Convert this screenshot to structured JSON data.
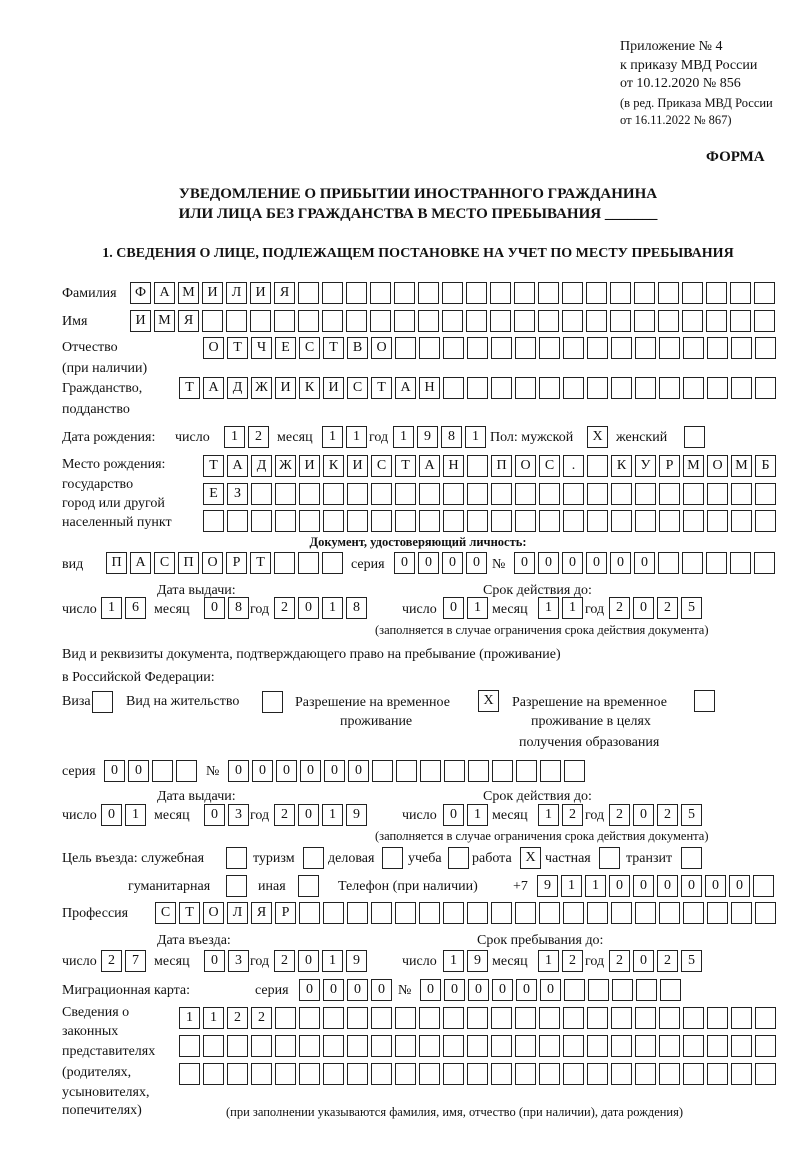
{
  "header": {
    "appendix": "Приложение № 4",
    "order": "к приказу МВД России",
    "order_date": "от 10.12.2020 № 856",
    "edit": "(в ред. Приказа МВД России",
    "edit_date": "от 16.11.2022 № 867)",
    "form": "ФОРМА",
    "title1": "УВЕДОМЛЕНИЕ О ПРИБЫТИИ ИНОСТРАННОГО ГРАЖДАНИНА",
    "title2": "ИЛИ ЛИЦА БЕЗ ГРАЖДАНСТВА В МЕСТО ПРЕБЫВАНИЯ _______",
    "section1": "1. СВЕДЕНИЯ О ЛИЦЕ, ПОДЛЕЖАЩЕМ ПОСТАНОВКЕ НА УЧЕТ ПО МЕСТУ ПРЕБЫВАНИЯ"
  },
  "labels": {
    "surname": "Фамилия",
    "name": "Имя",
    "patronymic": "Отчество",
    "patronymic2": "(при наличии)",
    "citizenship": "Гражданство,",
    "citizenship2": "подданство",
    "birth_date": "Дата рождения:",
    "day": "число",
    "month": "месяц",
    "year": "год",
    "sex": "Пол: мужской",
    "female": "женский",
    "birthplace1": "Место рождения:",
    "birthplace2": "государство",
    "birthplace3": "город или другой",
    "birthplace4": "населенный пункт",
    "id_doc": "Документ, удостоверяющий личность:",
    "kind": "вид",
    "series": "серия",
    "number": "№",
    "issue_date": "Дата выдачи:",
    "valid_until": "Срок действия до:",
    "validity_note": "(заполняется в случае ограничения срока действия документа)",
    "right_doc1": "Вид и реквизиты документа, подтверждающего право на пребывание (проживание)",
    "right_doc2": "в Российской Федерации:",
    "visa": "Виза",
    "residence": "Вид на жительство",
    "trp1": "Разрешение на временное",
    "trp2": "проживание",
    "trp_edu1": "Разрешение на временное",
    "trp_edu2": "проживание в целях",
    "trp_edu3": "получения образования",
    "purpose": "Цель въезда: служебная",
    "tourism": "туризм",
    "business": "деловая",
    "study": "учеба",
    "work": "работа",
    "private": "частная",
    "transit": "транзит",
    "humanitarian": "гуманитарная",
    "other": "иная",
    "phone": "Телефон (при наличии)",
    "phone_prefix": "+7",
    "profession": "Профессия",
    "entry_date": "Дата въезда:",
    "stay_until": "Срок пребывания до:",
    "migration_card": "Миграционная карта:",
    "reps1": "Сведения о",
    "reps2": "законных",
    "reps3": "представителях",
    "reps4": "(родителях,",
    "reps5": "усыновителях,",
    "reps6": "попечителях)",
    "reps_note": "(при заполнении указываются фамилия, имя, отчество (при наличии), дата рождения)"
  },
  "values": {
    "surname": "ФАМИЛИЯ",
    "name": "ИМЯ",
    "patronymic": "ОТЧЕСТВО",
    "citizenship": "ТАДЖИКИСТАН",
    "birth": {
      "day": "12",
      "month": "11",
      "year": "1981"
    },
    "sex_male": "X",
    "sex_female": "",
    "birthplace": [
      "ТАДЖИКИСТАН ПОС. КУРМОМБ",
      "ЕЗ",
      ""
    ],
    "id_doc": {
      "kind": "ПАСПОРТ",
      "series": "0000",
      "number": "000000",
      "issue": {
        "day": "16",
        "month": "08",
        "year": "2018"
      },
      "valid": {
        "day": "01",
        "month": "11",
        "year": "2025"
      }
    },
    "right_doc": {
      "visa": "",
      "residence": "",
      "trp": "X",
      "trp_edu": "",
      "series": "00",
      "number": "000000",
      "issue": {
        "day": "01",
        "month": "03",
        "year": "2019"
      },
      "valid": {
        "day": "01",
        "month": "12",
        "year": "2025"
      }
    },
    "purpose": {
      "official": "",
      "tourism": "",
      "business": "",
      "study": "",
      "work": "X",
      "private": "",
      "transit": "",
      "humanitarian": "",
      "other": ""
    },
    "phone": "911000000",
    "profession": "СТОЛЯР",
    "entry": {
      "day": "27",
      "month": "03",
      "year": "2019"
    },
    "stay": {
      "day": "19",
      "month": "12",
      "year": "2025"
    },
    "migration_card": {
      "series": "0000",
      "number": "000000"
    },
    "reps": [
      "1122",
      "",
      ""
    ]
  }
}
